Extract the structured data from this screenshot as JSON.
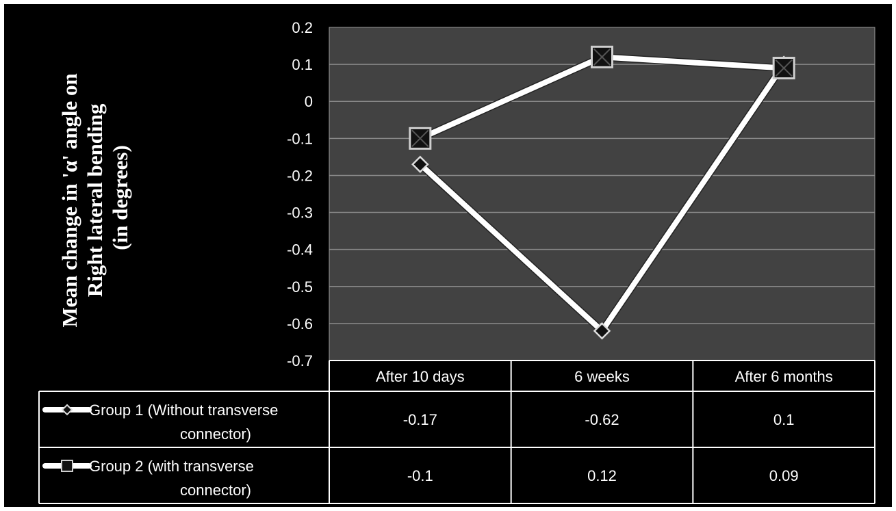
{
  "chart_data": {
    "type": "line",
    "title": "",
    "ylabel": [
      "Mean change in 'α' angle on",
      "Right lateral bending",
      "(in degrees)"
    ],
    "xlabel": "",
    "categories": [
      "After 10 days",
      "6 weeks",
      "After 6 months"
    ],
    "ylim": [
      -0.7,
      0.2
    ],
    "yticks": [
      0.2,
      0.1,
      0,
      -0.1,
      -0.2,
      -0.3,
      -0.4,
      -0.5,
      -0.6,
      -0.7
    ],
    "yticklabels": [
      "0.2",
      "0.1",
      "0",
      "-0.1",
      "-0.2",
      "-0.3",
      "-0.4",
      "-0.5",
      "-0.6",
      "-0.7"
    ],
    "grid": true,
    "data_table": true,
    "series": [
      {
        "name_lines": [
          "Group 1 (Without transverse",
          "connector)"
        ],
        "values": [
          -0.17,
          -0.62,
          0.1
        ],
        "labels": [
          "-0.17",
          "-0.62",
          "0.1"
        ],
        "marker": "diamond",
        "line_color": "#ffffff",
        "marker_fill": "#111111"
      },
      {
        "name_lines": [
          "Group 2 (with transverse",
          "connector)"
        ],
        "values": [
          -0.1,
          0.12,
          0.09
        ],
        "labels": [
          "-0.1",
          "0.12",
          "0.09"
        ],
        "marker": "square",
        "line_color": "#ffffff",
        "marker_fill": "#111111"
      }
    ],
    "colors": {
      "background": "#000000",
      "plot_area": "#424242",
      "gridline": "#8a8a8a",
      "text": "#ffffff"
    }
  }
}
